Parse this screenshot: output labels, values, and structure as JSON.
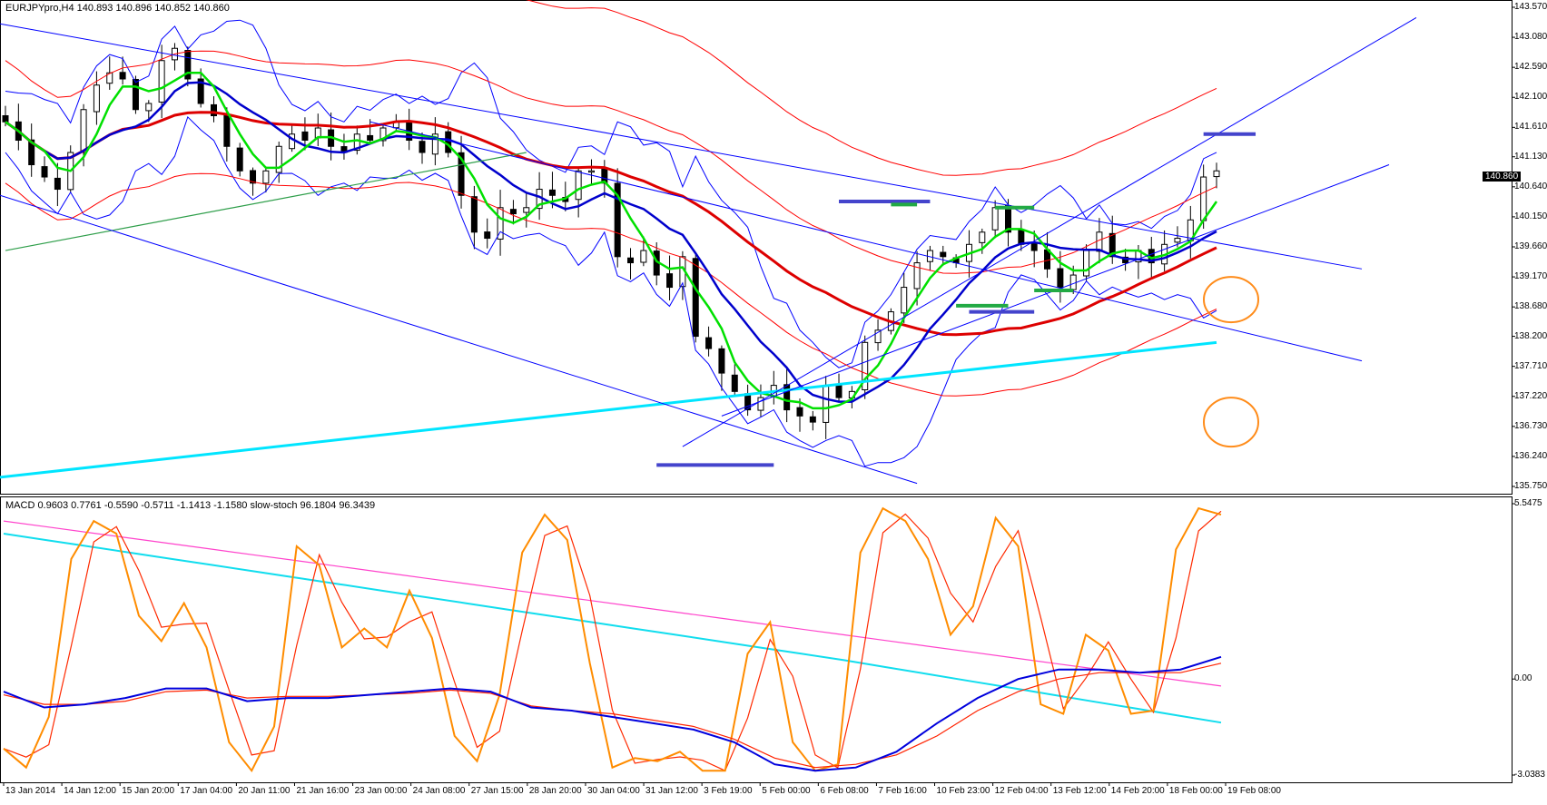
{
  "header": {
    "main_title": "EURJPYpro,H4  140.893 140.896 140.852 140.860",
    "sub_title": "MACD 0.9603 0.7761 -0.5590 -0.5711 -1.1413 -1.1580  slow-stoch 96.1804 96.3439"
  },
  "current_price_label": "140.860",
  "colors": {
    "candle_up": "#ffffff",
    "candle_down": "#000000",
    "ma_green": "#00e000",
    "ma_blue": "#0000cc",
    "ma_red_thick": "#dd0000",
    "bands": "#0000ff",
    "envelope_red": "#ff0000",
    "trend_green": "#2e9e4a",
    "trend_cyan": "#00e5ff",
    "annot_blue": "#4444cc",
    "annot_green": "#22aa44",
    "circle_orange": "#ff8c1a",
    "stoch_orange": "#ff8c00",
    "stoch_red": "#ff2a00",
    "macd_blue": "#0000dd",
    "macd_red": "#ff2200",
    "signal_magenta": "#ff44cc",
    "signal_cyan": "#11ddee"
  },
  "chart_data": [
    {
      "type": "candlestick",
      "symbol": "EURJPYpro",
      "timeframe": "H4",
      "ohlc_last": {
        "open": 140.893,
        "high": 140.896,
        "low": 140.852,
        "close": 140.86
      },
      "ylim": [
        135.75,
        143.57
      ],
      "y_ticks": [
        "143.570",
        "143.080",
        "142.590",
        "142.100",
        "141.610",
        "141.130",
        "140.640",
        "140.150",
        "139.660",
        "139.170",
        "138.680",
        "138.200",
        "137.710",
        "137.220",
        "136.730",
        "136.240",
        "135.750"
      ],
      "x_ticks": [
        "13 Jan 2014",
        "14 Jan 12:00",
        "15 Jan 20:00",
        "17 Jan 04:00",
        "20 Jan 11:00",
        "21 Jan 16:00",
        "23 Jan 00:00",
        "24 Jan 08:00",
        "27 Jan 15:00",
        "28 Jan 20:00",
        "30 Jan 04:00",
        "31 Jan 12:00",
        "3 Feb 19:00",
        "5 Feb 00:00",
        "6 Feb 08:00",
        "7 Feb 16:00",
        "10 Feb 23:00",
        "12 Feb 04:00",
        "13 Feb 12:00",
        "14 Feb 20:00",
        "18 Feb 00:00",
        "19 Feb 08:00"
      ],
      "close_series": [
        141.7,
        141.4,
        141.0,
        140.8,
        140.6,
        141.2,
        141.9,
        142.3,
        142.5,
        142.4,
        141.9,
        142.0,
        142.7,
        142.9,
        142.4,
        142.0,
        141.8,
        141.3,
        140.9,
        140.7,
        140.9,
        141.3,
        141.5,
        141.4,
        141.6,
        141.3,
        141.2,
        141.5,
        141.4,
        141.6,
        141.7,
        141.4,
        141.2,
        141.5,
        141.2,
        140.5,
        139.9,
        139.8,
        140.3,
        140.2,
        140.3,
        140.6,
        140.5,
        140.4,
        140.9,
        140.9,
        140.7,
        139.5,
        139.4,
        139.6,
        139.2,
        139.0,
        139.5,
        138.2,
        138.0,
        137.6,
        137.3,
        137.0,
        137.2,
        137.4,
        137.0,
        136.9,
        136.8,
        137.4,
        137.2,
        137.3,
        138.1,
        138.3,
        138.6,
        139.0,
        139.4,
        139.6,
        139.5,
        139.4,
        139.7,
        139.9,
        140.3,
        139.9,
        139.7,
        139.6,
        139.3,
        139.0,
        139.2,
        139.6,
        139.9,
        139.5,
        139.4,
        139.6,
        139.4,
        139.7,
        139.8,
        140.1,
        140.8,
        140.9
      ]
    },
    {
      "type": "line",
      "title": "MACD / slow-stoch",
      "ylim": [
        -3.0383,
        5.5475
      ],
      "y_ticks": [
        "5.5475",
        "0.00",
        "-3.0383"
      ],
      "series": [
        {
          "name": "slow-stoch %K",
          "values": [
            -2.2,
            -2.8,
            -1.2,
            3.8,
            5.0,
            4.6,
            2.0,
            1.2,
            2.4,
            1.0,
            -2.0,
            -2.9,
            -1.5,
            4.2,
            3.6,
            1.0,
            1.6,
            1.0,
            2.8,
            1.3,
            -1.8,
            -2.6,
            -0.5,
            4.0,
            5.2,
            4.4,
            0.5,
            -2.8,
            -2.5,
            -2.6,
            -2.3,
            -2.9,
            -2.9,
            0.8,
            1.8,
            -2.0,
            -2.9,
            -2.7,
            4.0,
            5.4,
            5.0,
            3.8,
            1.4,
            2.3,
            5.1,
            4.2,
            -0.8,
            -1.1,
            1.4,
            0.9,
            -1.1,
            -1.0,
            4.1,
            5.4,
            5.2
          ]
        },
        {
          "name": "MACD main",
          "values": [
            -0.4,
            -0.9,
            -0.8,
            -0.6,
            -0.3,
            -0.3,
            -0.7,
            -0.6,
            -0.6,
            -0.5,
            -0.4,
            -0.3,
            -0.4,
            -0.9,
            -1.0,
            -1.2,
            -1.4,
            -1.6,
            -2.0,
            -2.7,
            -2.9,
            -2.8,
            -2.3,
            -1.4,
            -0.6,
            0.0,
            0.3,
            0.3,
            0.2,
            0.3,
            0.7
          ]
        },
        {
          "name": "MACD signal",
          "values": [
            -0.5,
            -0.8,
            -0.8,
            -0.7,
            -0.4,
            -0.35,
            -0.6,
            -0.55,
            -0.55,
            -0.5,
            -0.45,
            -0.35,
            -0.45,
            -0.85,
            -1.0,
            -1.1,
            -1.3,
            -1.5,
            -1.9,
            -2.5,
            -2.8,
            -2.7,
            -2.4,
            -1.8,
            -1.0,
            -0.4,
            0.0,
            0.2,
            0.2,
            0.2,
            0.5
          ]
        }
      ]
    }
  ]
}
